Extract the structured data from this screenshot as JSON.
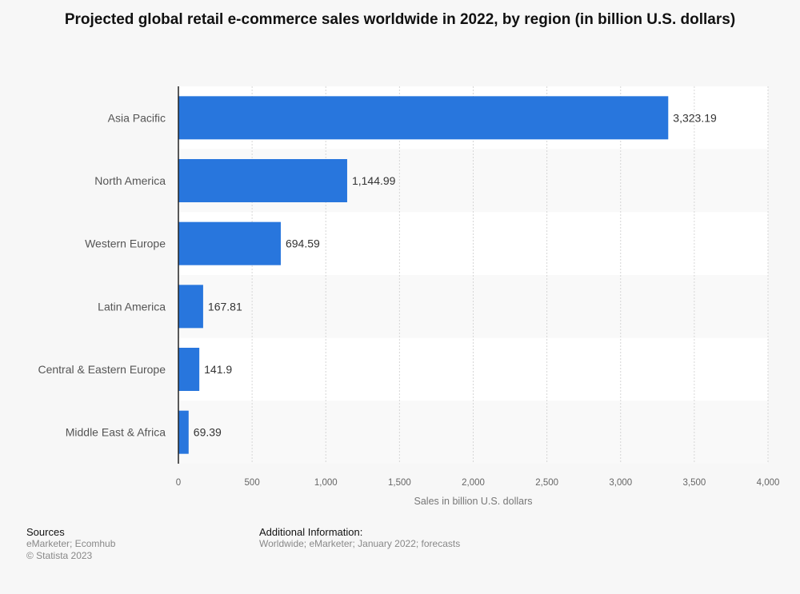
{
  "chart_data": {
    "type": "bar",
    "orientation": "horizontal",
    "title": "Projected global retail e-commerce sales worldwide in 2022, by region (in billion U.S. dollars)",
    "categories": [
      "Asia Pacific",
      "North America",
      "Western Europe",
      "Latin America",
      "Central & Eastern Europe",
      "Middle East & Africa"
    ],
    "values": [
      3323.19,
      1144.99,
      694.59,
      167.81,
      141.9,
      69.39
    ],
    "value_labels": [
      "3,323.19",
      "1,144.99",
      "694.59",
      "167.81",
      "141.9",
      "69.39"
    ],
    "xlabel": "Sales in billion U.S. dollars",
    "xlim": [
      0,
      4000
    ],
    "xticks": [
      0,
      500,
      1000,
      1500,
      2000,
      2500,
      3000,
      3500,
      4000
    ],
    "xtick_labels": [
      "0",
      "500",
      "1,000",
      "1,500",
      "2,000",
      "2,500",
      "3,000",
      "3,500",
      "4,000"
    ],
    "grid": true,
    "bar_color": "#2876dd"
  },
  "footer": {
    "sources_heading": "Sources",
    "sources": "eMarketer; Ecomhub",
    "copyright": "© Statista 2023",
    "additional_heading": "Additional Information:",
    "additional": "Worldwide; eMarketer; January 2022; forecasts"
  }
}
